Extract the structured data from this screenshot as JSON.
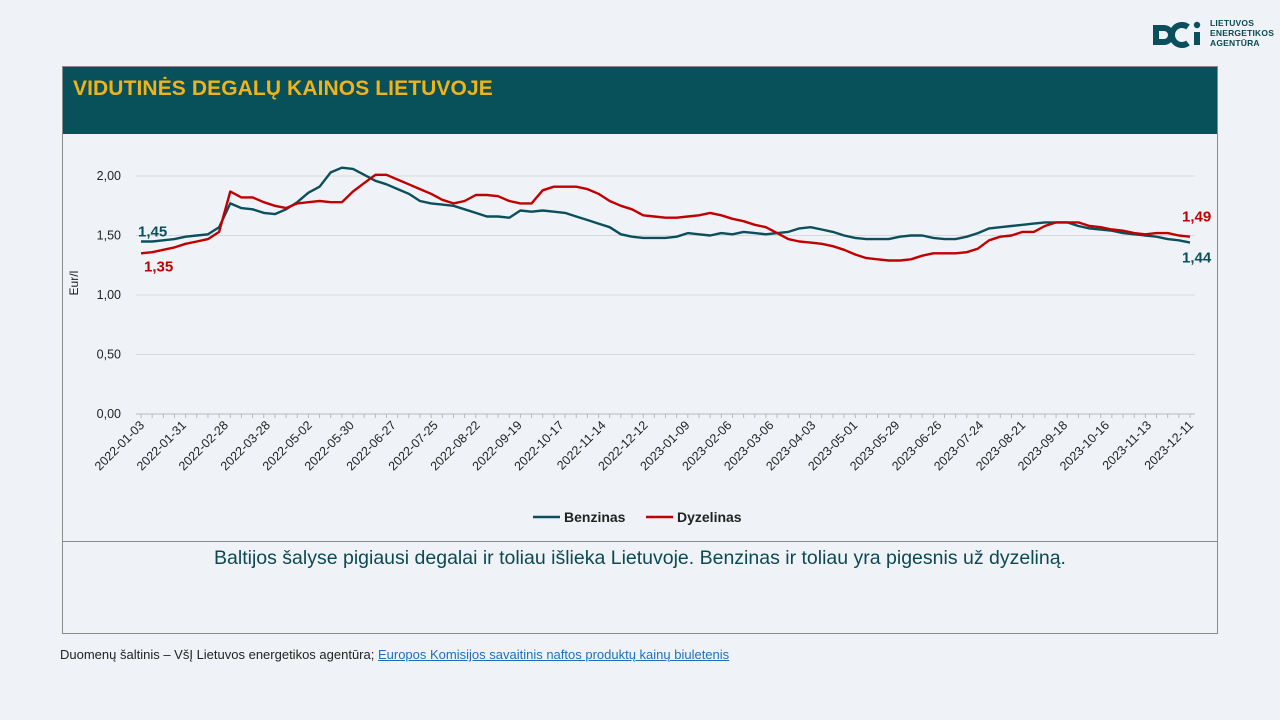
{
  "logo": {
    "lines": [
      "LIETUVOS",
      "ENERGETIKOS",
      "AGENTŪRA"
    ]
  },
  "title": "VIDUTINĖS DEGALŲ KAINOS LIETUVOJE",
  "summary": "Baltijos šalyse pigiausi degalai ir toliau išlieka Lietuvoje. Benzinas ir toliau yra pigesnis už dyzeliną.",
  "source": {
    "prefix": "Duomenų šaltinis – VšĮ Lietuvos energetikos agentūra; ",
    "link_text": "Europos Komisijos savaitinis naftos produktų kainų biuletenis"
  },
  "colors": {
    "header_bg": "#08505a",
    "title": "#f0b419",
    "benzinas": "#0b4f5c",
    "dyzelinas": "#c00000"
  },
  "chart_data": {
    "type": "line",
    "ylabel": "Eur/l",
    "ylim": [
      0,
      2.2
    ],
    "yticks": [
      "0,00",
      "0,50",
      "1,00",
      "1,50",
      "2,00"
    ],
    "ytick_values": [
      0,
      0.5,
      1.0,
      1.5,
      2.0
    ],
    "grid": true,
    "legend_position": "bottom",
    "x_tick_labels": [
      "2022-01-03",
      "2022-01-31",
      "2022-02-28",
      "2022-03-28",
      "2022-05-02",
      "2022-05-30",
      "2022-06-27",
      "2022-07-25",
      "2022-08-22",
      "2022-09-19",
      "2022-10-17",
      "2022-11-14",
      "2022-12-12",
      "2023-01-09",
      "2023-02-06",
      "2023-03-06",
      "2023-04-03",
      "2023-05-01",
      "2023-05-29",
      "2023-06-26",
      "2023-07-24",
      "2023-08-21",
      "2023-09-18",
      "2023-10-16",
      "2023-11-13",
      "2023-12-11"
    ],
    "series": [
      {
        "name": "Benzinas",
        "color": "#0b4f5c",
        "start_label": "1,45",
        "end_label": "1,44",
        "values": [
          1.45,
          1.45,
          1.46,
          1.47,
          1.49,
          1.5,
          1.51,
          1.57,
          1.77,
          1.73,
          1.72,
          1.69,
          1.68,
          1.72,
          1.78,
          1.86,
          1.91,
          2.03,
          2.07,
          2.06,
          2.01,
          1.96,
          1.93,
          1.89,
          1.85,
          1.79,
          1.77,
          1.76,
          1.75,
          1.72,
          1.69,
          1.66,
          1.66,
          1.65,
          1.71,
          1.7,
          1.71,
          1.7,
          1.69,
          1.66,
          1.63,
          1.6,
          1.57,
          1.51,
          1.49,
          1.48,
          1.48,
          1.48,
          1.49,
          1.52,
          1.51,
          1.5,
          1.52,
          1.51,
          1.53,
          1.52,
          1.51,
          1.52,
          1.53,
          1.56,
          1.57,
          1.55,
          1.53,
          1.5,
          1.48,
          1.47,
          1.47,
          1.47,
          1.49,
          1.5,
          1.5,
          1.48,
          1.47,
          1.47,
          1.49,
          1.52,
          1.56,
          1.57,
          1.58,
          1.59,
          1.6,
          1.61,
          1.61,
          1.61,
          1.58,
          1.56,
          1.55,
          1.54,
          1.52,
          1.51,
          1.5,
          1.49,
          1.47,
          1.46,
          1.44
        ]
      },
      {
        "name": "Dyzelinas",
        "color": "#c00000",
        "start_label": "1,35",
        "end_label": "1,49",
        "values": [
          1.35,
          1.36,
          1.38,
          1.4,
          1.43,
          1.45,
          1.47,
          1.53,
          1.87,
          1.82,
          1.82,
          1.78,
          1.75,
          1.73,
          1.77,
          1.78,
          1.79,
          1.78,
          1.78,
          1.87,
          1.94,
          2.01,
          2.01,
          1.97,
          1.93,
          1.89,
          1.85,
          1.8,
          1.77,
          1.79,
          1.84,
          1.84,
          1.83,
          1.79,
          1.77,
          1.77,
          1.88,
          1.91,
          1.91,
          1.91,
          1.89,
          1.85,
          1.79,
          1.75,
          1.72,
          1.67,
          1.66,
          1.65,
          1.65,
          1.66,
          1.67,
          1.69,
          1.67,
          1.64,
          1.62,
          1.59,
          1.57,
          1.52,
          1.47,
          1.45,
          1.44,
          1.43,
          1.41,
          1.38,
          1.34,
          1.31,
          1.3,
          1.29,
          1.29,
          1.3,
          1.33,
          1.35,
          1.35,
          1.35,
          1.36,
          1.39,
          1.46,
          1.49,
          1.5,
          1.53,
          1.53,
          1.58,
          1.61,
          1.61,
          1.61,
          1.58,
          1.57,
          1.55,
          1.54,
          1.52,
          1.51,
          1.52,
          1.52,
          1.5,
          1.49
        ]
      }
    ]
  }
}
